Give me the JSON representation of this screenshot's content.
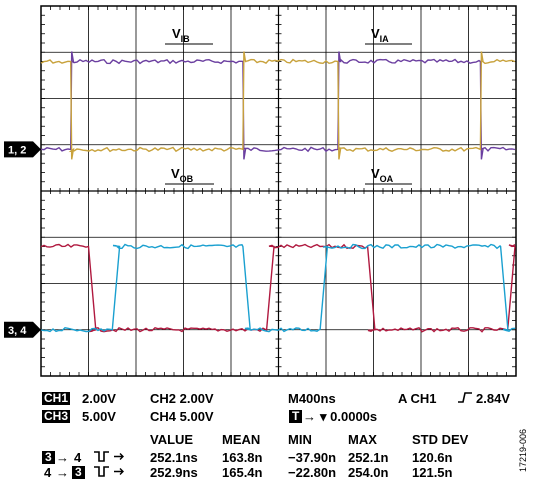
{
  "chart_data": {
    "type": "line",
    "colors": {
      "ch1": "#6b3fa0",
      "ch2": "#c8a23c",
      "ch3": "#b0193f",
      "ch4": "#1aa0d0"
    },
    "grid": {
      "on": true,
      "divisions_x": 10,
      "divisions_y": 8
    },
    "time_axis": {
      "per_division_ns": 400,
      "start_ns": 0,
      "end_ns": 4000
    },
    "annotations": {
      "v_ib": {
        "main": "V",
        "sub": "IB"
      },
      "v_ia": {
        "main": "V",
        "sub": "IA"
      },
      "v_ob": {
        "main": "V",
        "sub": "OB"
      },
      "v_oa": {
        "main": "V",
        "sub": "OA"
      }
    },
    "markers": {
      "upper": "1, 2",
      "lower": "3, 4"
    },
    "series": [
      {
        "channel": "ch1",
        "role": "input",
        "low_div": 4.9,
        "high_div": 6.8,
        "transitions_ns": [
          250,
          1700,
          2500,
          3700
        ],
        "start_high": false
      },
      {
        "channel": "ch2",
        "role": "input",
        "low_div": 4.9,
        "high_div": 6.8,
        "transitions_ns": [
          250,
          1700,
          2500,
          3700
        ],
        "start_high": true
      },
      {
        "channel": "ch3",
        "role": "output",
        "low_div": 1.0,
        "high_div": 2.8,
        "transitions_ns": [
          400,
          1900,
          2750,
          3930
        ],
        "start_high": true
      },
      {
        "channel": "ch4",
        "role": "output",
        "low_div": 1.0,
        "high_div": 2.8,
        "transitions_ns": [
          600,
          1700,
          2350,
          3870
        ],
        "start_high": false
      }
    ]
  },
  "readout": {
    "ch1_tag": "CH1",
    "ch1_scale": "2.00V",
    "ch2": "CH2 2.00V",
    "ch3_tag": "CH3",
    "ch3_scale": "5.00V",
    "ch4": "CH4 5.00V",
    "timebase": "M400ns",
    "trigger": "A  CH1",
    "trigger_level": "2.84V",
    "t_tag": "T",
    "t_offset": "▾ 0.0000s"
  },
  "measurements": {
    "headers": [
      "VALUE",
      "MEAN",
      "MIN",
      "MAX",
      "STD DEV"
    ],
    "rows": [
      {
        "from": "3",
        "to": "4",
        "from_boxed": true,
        "values": [
          "252.1ns",
          "163.8n",
          "−37.90n",
          "252.1n",
          "120.6n"
        ]
      },
      {
        "from": "4",
        "to": "3",
        "from_boxed": false,
        "values": [
          "252.9ns",
          "165.4n",
          "−22.80n",
          "254.0n",
          "121.5n"
        ]
      }
    ]
  },
  "figure_code": "17219-006"
}
